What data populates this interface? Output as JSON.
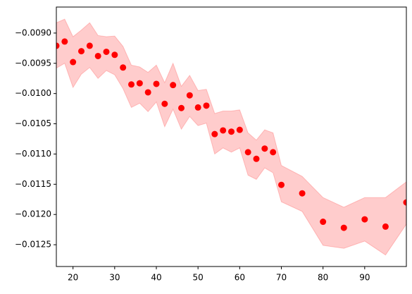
{
  "chart_data": {
    "type": "scatter",
    "x": [
      16,
      18,
      20,
      22,
      24,
      26,
      28,
      30,
      32,
      34,
      36,
      38,
      40,
      42,
      44,
      46,
      48,
      50,
      52,
      54,
      56,
      58,
      60,
      62,
      64,
      66,
      68,
      70,
      75,
      80,
      85,
      90,
      95,
      100
    ],
    "series": [
      {
        "color": "red",
        "values": [
          -0.00921,
          -0.00914,
          -0.00948,
          -0.0093,
          -0.00921,
          -0.00938,
          -0.00931,
          -0.00936,
          -0.00957,
          -0.00985,
          -0.00983,
          -0.00998,
          -0.00984,
          -0.01017,
          -0.00986,
          -0.01024,
          -0.01003,
          -0.01023,
          -0.0102,
          -0.01067,
          -0.01061,
          -0.01063,
          -0.0106,
          -0.01097,
          -0.01108,
          -0.01091,
          -0.01097,
          -0.01151,
          -0.01165,
          -0.01212,
          -0.01222,
          -0.01208,
          -0.0122,
          -0.0118
        ]
      }
    ],
    "band": {
      "color": "red",
      "alpha": 0.2,
      "upper": [
        -0.00883,
        -0.00877,
        -0.00906,
        -0.00895,
        -0.00883,
        -0.00904,
        -0.00906,
        -0.00905,
        -0.00922,
        -0.00953,
        -0.00956,
        -0.00965,
        -0.00953,
        -0.00982,
        -0.0095,
        -0.00988,
        -0.0097,
        -0.00995,
        -0.00993,
        -0.01033,
        -0.01029,
        -0.01029,
        -0.01027,
        -0.01065,
        -0.01077,
        -0.0106,
        -0.01065,
        -0.01119,
        -0.01137,
        -0.01172,
        -0.01188,
        -0.01172,
        -0.01172,
        -0.01146
      ],
      "lower": [
        -0.00958,
        -0.0095,
        -0.0099,
        -0.00968,
        -0.00957,
        -0.00975,
        -0.00962,
        -0.00969,
        -0.00992,
        -0.01023,
        -0.01016,
        -0.0103,
        -0.01014,
        -0.01055,
        -0.01026,
        -0.01059,
        -0.01038,
        -0.01053,
        -0.01049,
        -0.011,
        -0.0109,
        -0.01097,
        -0.0109,
        -0.01135,
        -0.01142,
        -0.01123,
        -0.01131,
        -0.01179,
        -0.01195,
        -0.01251,
        -0.01256,
        -0.01244,
        -0.01267,
        -0.01216
      ]
    },
    "xlim": [
      16,
      100
    ],
    "xticks": [
      20,
      30,
      40,
      50,
      60,
      70,
      80,
      90
    ],
    "ylim": [
      -0.01286,
      -0.00857
    ],
    "yticks": [
      {
        "value": -0.009,
        "label": "−0.0090"
      },
      {
        "value": -0.0095,
        "label": "−0.0095"
      },
      {
        "value": -0.01,
        "label": "−0.0100"
      },
      {
        "value": -0.0105,
        "label": "−0.0105"
      },
      {
        "value": -0.011,
        "label": "−0.0110"
      },
      {
        "value": -0.0115,
        "label": "−0.0115"
      },
      {
        "value": -0.012,
        "label": "−0.0120"
      },
      {
        "value": -0.0125,
        "label": "−0.0125"
      }
    ]
  }
}
